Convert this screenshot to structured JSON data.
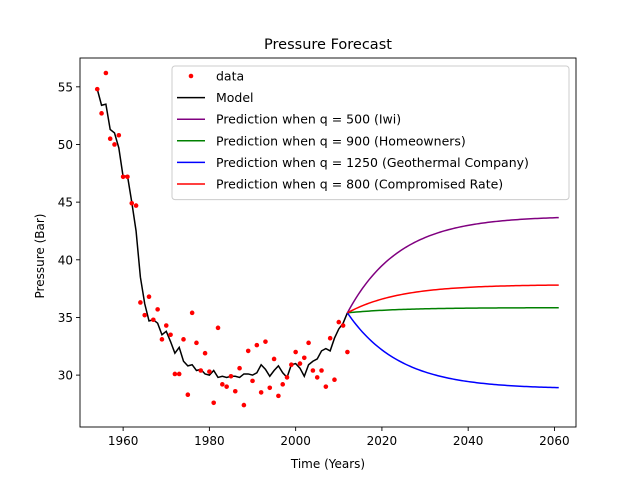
{
  "chart_data": {
    "type": "line",
    "title": "Pressure Forecast",
    "xlabel": "Time (Years)",
    "ylabel": "Pressure (Bar)",
    "xlim": [
      1950,
      2065
    ],
    "ylim": [
      25.5,
      57.5
    ],
    "xticks": [
      1960,
      1980,
      2000,
      2020,
      2040,
      2060
    ],
    "yticks": [
      30,
      35,
      40,
      45,
      50,
      55
    ],
    "grid": false,
    "legend_position": "top-center",
    "data": {
      "name": "data",
      "color": "#ff0000",
      "x": [
        1954,
        1955,
        1956,
        1957,
        1958,
        1959,
        1960,
        1961,
        1962,
        1963,
        1964,
        1965,
        1966,
        1967,
        1968,
        1969,
        1970,
        1971,
        1972,
        1973,
        1974,
        1975,
        1976,
        1977,
        1978,
        1979,
        1980,
        1981,
        1982,
        1983,
        1984,
        1985,
        1986,
        1987,
        1988,
        1989,
        1990,
        1991,
        1992,
        1993,
        1994,
        1995,
        1996,
        1997,
        1998,
        1999,
        2000,
        2001,
        2002,
        2003,
        2004,
        2005,
        2006,
        2007,
        2008,
        2009,
        2010,
        2011,
        2012
      ],
      "y": [
        54.8,
        52.7,
        56.2,
        50.5,
        50.0,
        50.8,
        47.2,
        47.2,
        44.9,
        44.7,
        36.3,
        35.2,
        36.8,
        34.8,
        35.7,
        33.1,
        34.3,
        33.5,
        30.1,
        30.1,
        33.1,
        28.3,
        35.4,
        32.8,
        30.4,
        31.9,
        30.3,
        27.6,
        34.1,
        29.2,
        29.0,
        29.9,
        28.6,
        30.6,
        27.4,
        32.1,
        29.5,
        32.6,
        28.5,
        32.9,
        28.9,
        31.4,
        28.2,
        29.2,
        29.8,
        30.9,
        32.0,
        31.0,
        31.5,
        32.8,
        30.4,
        29.8,
        30.4,
        29.0,
        33.2,
        29.6,
        34.6,
        34.3,
        32.0
      ]
    },
    "series": [
      {
        "name": "Model",
        "color": "#000000",
        "x": [
          1954,
          1955,
          1956,
          1957,
          1958,
          1959,
          1960,
          1961,
          1962,
          1963,
          1964,
          1965,
          1966,
          1967,
          1968,
          1969,
          1970,
          1971,
          1972,
          1973,
          1974,
          1975,
          1976,
          1977,
          1978,
          1979,
          1980,
          1981,
          1982,
          1983,
          1984,
          1985,
          1986,
          1987,
          1988,
          1989,
          1990,
          1991,
          1992,
          1993,
          1994,
          1995,
          1996,
          1997,
          1998,
          1999,
          2000,
          2001,
          2002,
          2003,
          2004,
          2005,
          2006,
          2007,
          2008,
          2009,
          2010,
          2011,
          2012
        ],
        "y": [
          54.8,
          53.4,
          53.5,
          51.3,
          51.0,
          49.7,
          47.2,
          47.3,
          45.0,
          42.5,
          38.5,
          36.2,
          34.7,
          34.8,
          34.5,
          33.5,
          33.8,
          32.9,
          31.9,
          32.4,
          31.2,
          30.8,
          30.9,
          30.4,
          30.5,
          30.1,
          30.0,
          30.4,
          29.8,
          29.9,
          29.8,
          29.9,
          29.9,
          29.8,
          30.1,
          30.1,
          30.0,
          30.2,
          30.9,
          30.5,
          29.9,
          30.4,
          30.8,
          30.2,
          29.8,
          30.9,
          31.0,
          30.6,
          29.9,
          30.9,
          31.2,
          31.4,
          32.1,
          32.3,
          32.1,
          33.2,
          34.0,
          34.5,
          35.4
        ]
      },
      {
        "name": "Prediction when q = 500 (Iwi)",
        "color": "#800080",
        "start": [
          2012,
          35.4
        ],
        "asymptote": 43.8,
        "tau": 12
      },
      {
        "name": "Prediction when q = 900 (Homeowners)",
        "color": "#008000",
        "start": [
          2012,
          35.4
        ],
        "asymptote": 35.85,
        "tau": 12
      },
      {
        "name": "Prediction when q = 1250 (Geothermal Company)",
        "color": "#0000ff",
        "start": [
          2012,
          35.4
        ],
        "asymptote": 28.8,
        "tau": 12
      },
      {
        "name": "Prediction when q = 800 (Compromised Rate)",
        "color": "#ff0000",
        "start": [
          2012,
          35.4
        ],
        "asymptote": 37.85,
        "tau": 12
      }
    ],
    "prediction_x_end": 2061
  }
}
